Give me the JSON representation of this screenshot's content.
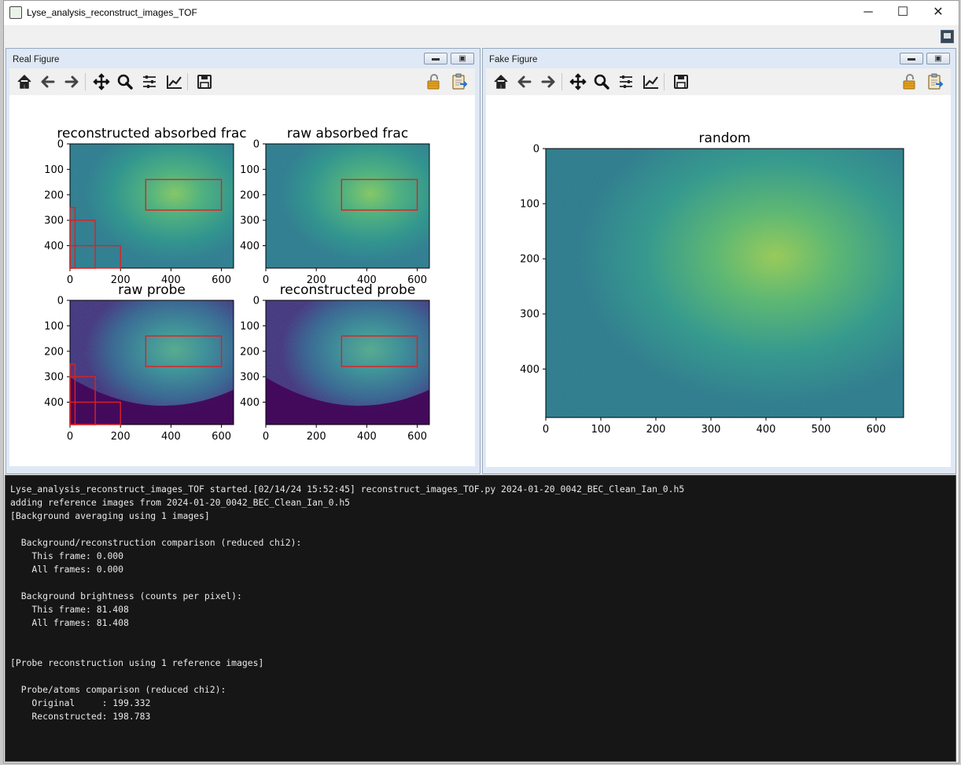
{
  "window": {
    "title": "Lyse_analysis_reconstruct_images_TOF",
    "minimize_glyph": "─",
    "maximize_glyph": "☐",
    "close_glyph": "✕"
  },
  "real_figure": {
    "title": "Real Figure",
    "subplots": [
      {
        "title": "reconstructed absorbed frac",
        "colormap": "viridis-absorbed",
        "xticks": [
          "0",
          "200",
          "400",
          "600"
        ],
        "yticks": [
          "0",
          "100",
          "200",
          "300",
          "400"
        ],
        "rois": true
      },
      {
        "title": "raw absorbed frac",
        "colormap": "viridis-absorbed",
        "xticks": [
          "0",
          "200",
          "400",
          "600"
        ],
        "yticks": [
          "0",
          "100",
          "200",
          "300",
          "400"
        ],
        "rois": false
      },
      {
        "title": "raw probe",
        "colormap": "viridis-probe",
        "xticks": [
          "0",
          "200",
          "400",
          "600"
        ],
        "yticks": [
          "0",
          "100",
          "200",
          "300",
          "400"
        ],
        "rois": true
      },
      {
        "title": "reconstructed probe",
        "colormap": "viridis-probe",
        "xticks": [
          "0",
          "200",
          "400",
          "600"
        ],
        "yticks": [
          "0",
          "100",
          "200",
          "300",
          "400"
        ],
        "rois": false
      }
    ]
  },
  "fake_figure": {
    "title": "Fake Figure",
    "plot_title": "random",
    "xticks": [
      "0",
      "100",
      "200",
      "300",
      "400",
      "500",
      "600"
    ],
    "yticks": [
      "0",
      "100",
      "200",
      "300",
      "400"
    ]
  },
  "toolbar": {
    "icons": [
      "home-icon",
      "back-icon",
      "forward-icon",
      "pan-icon",
      "zoom-icon",
      "configure-subplots-icon",
      "edit-axis-icon",
      "save-icon"
    ],
    "right_icons": [
      "lock-icon",
      "clipboard-icon"
    ]
  },
  "colors": {
    "roi": "#e02020",
    "viridis_dark": "#440154",
    "viridis_mid": "#21918c",
    "viridis_bright": "#b5de2b"
  },
  "console": {
    "lines": [
      "Lyse_analysis_reconstruct_images_TOF started.[02/14/24 15:52:45] reconstruct_images_TOF.py 2024-01-20_0042_BEC_Clean_Ian_0.h5",
      "adding reference images from 2024-01-20_0042_BEC_Clean_Ian_0.h5",
      "[Background averaging using 1 images]",
      "",
      "  Background/reconstruction comparison (reduced chi2):",
      "    This frame: 0.000",
      "    All frames: 0.000",
      "",
      "  Background brightness (counts per pixel):",
      "    This frame: 81.408",
      "    All frames: 81.408",
      "",
      "",
      "[Probe reconstruction using 1 reference images]",
      "",
      "  Probe/atoms comparison (reduced chi2):",
      "    Original     : 199.332",
      "    Reconstructed: 198.783"
    ]
  }
}
